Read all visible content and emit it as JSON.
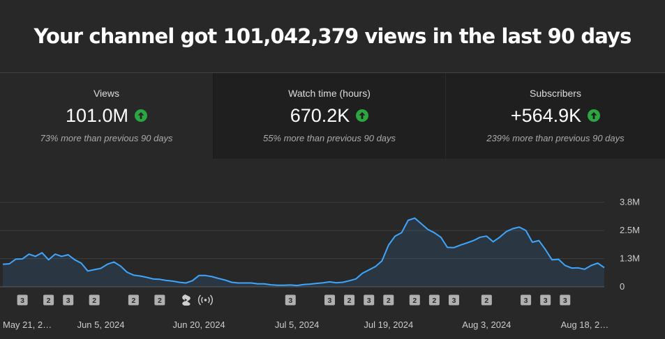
{
  "headline": "Your channel got 101,042,379 views in the last 90 days",
  "tabs": [
    {
      "label": "Views",
      "value": "101.0M",
      "sub": "73% more than previous 90 days",
      "trend": "up-arrow-icon"
    },
    {
      "label": "Watch time (hours)",
      "value": "670.2K",
      "sub": "55% more than previous 90 days",
      "trend": "up-arrow-icon"
    },
    {
      "label": "Subscribers",
      "value": "+564.9K",
      "sub": "239% more than previous 90 days",
      "trend": "up-arrow-icon"
    }
  ],
  "colors": {
    "line": "#3ea6ff",
    "up": "#2ba640",
    "badge": "#b0b0b0"
  },
  "chart_data": {
    "type": "area",
    "ylim": [
      0,
      3800000
    ],
    "y_ticks": [
      {
        "value": 0,
        "label": "0"
      },
      {
        "value": 1250000,
        "label": "1.3M"
      },
      {
        "value": 2500000,
        "label": "2.5M"
      },
      {
        "value": 3750000,
        "label": "3.8M"
      }
    ],
    "x_tick_labels": [
      {
        "day": 0,
        "label": "May 21, 2…"
      },
      {
        "day": 15,
        "label": "Jun 5, 2024"
      },
      {
        "day": 30,
        "label": "Jun 20, 2024"
      },
      {
        "day": 45,
        "label": "Jul 5, 2024"
      },
      {
        "day": 59,
        "label": "Jul 19, 2024"
      },
      {
        "day": 74,
        "label": "Aug 3, 2024"
      },
      {
        "day": 89,
        "label": "Aug 18, 2…"
      }
    ],
    "series": [
      {
        "values": [
          1.0,
          1.02,
          1.23,
          1.24,
          1.45,
          1.35,
          1.51,
          1.2,
          1.45,
          1.35,
          1.42,
          1.2,
          1.05,
          0.7,
          0.76,
          0.82,
          1.0,
          1.1,
          0.92,
          0.65,
          0.52,
          0.48,
          0.42,
          0.35,
          0.33,
          0.28,
          0.25,
          0.2,
          0.17,
          0.27,
          0.5,
          0.5,
          0.45,
          0.37,
          0.3,
          0.2,
          0.17,
          0.17,
          0.17,
          0.13,
          0.13,
          0.09,
          0.07,
          0.07,
          0.08,
          0.06,
          0.1,
          0.12,
          0.15,
          0.18,
          0.22,
          0.18,
          0.2,
          0.27,
          0.35,
          0.6,
          0.75,
          0.9,
          1.15,
          1.85,
          2.25,
          2.4,
          2.95,
          3.05,
          2.8,
          2.55,
          2.4,
          2.2,
          1.75,
          1.74,
          1.85,
          1.95,
          2.05,
          2.2,
          2.25,
          2.0,
          2.2,
          2.45,
          2.58,
          2.65,
          2.5,
          1.98,
          2.05,
          1.65,
          1.2,
          1.22,
          0.95,
          0.83,
          0.84,
          0.78,
          0.95,
          1.05,
          0.85
        ]
      }
    ],
    "events": [
      {
        "day": 3,
        "label": "3"
      },
      {
        "day": 7,
        "label": "2"
      },
      {
        "day": 10,
        "label": "3"
      },
      {
        "day": 14,
        "label": "2"
      },
      {
        "day": 20,
        "label": "2"
      },
      {
        "day": 24,
        "label": "2"
      },
      {
        "day": 28,
        "icon": "shorts-icon"
      },
      {
        "day": 31,
        "icon": "live-icon"
      },
      {
        "day": 44,
        "label": "3"
      },
      {
        "day": 50,
        "label": "3"
      },
      {
        "day": 53,
        "label": "2"
      },
      {
        "day": 56,
        "label": "3"
      },
      {
        "day": 59,
        "label": "2"
      },
      {
        "day": 63,
        "label": "2"
      },
      {
        "day": 66,
        "label": "2"
      },
      {
        "day": 69,
        "label": "3"
      },
      {
        "day": 74,
        "label": "2"
      },
      {
        "day": 80,
        "label": "3"
      },
      {
        "day": 83,
        "label": "3"
      },
      {
        "day": 86,
        "label": "3"
      }
    ]
  }
}
